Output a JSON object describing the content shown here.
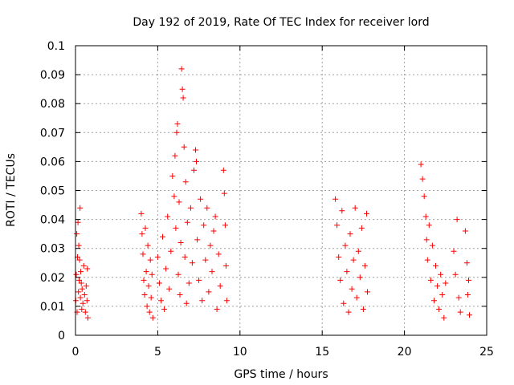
{
  "chart_data": {
    "type": "scatter",
    "title": "Day 192 of 2019, Rate Of TEC Index for receiver lord",
    "xlabel": "GPS time / hours",
    "ylabel": "ROTI / TECUs",
    "xlim": [
      0,
      25
    ],
    "ylim": [
      0,
      0.1
    ],
    "xticks": [
      0,
      5,
      10,
      15,
      20,
      25
    ],
    "xtick_labels": [
      "0",
      "5",
      "10",
      "15",
      "20",
      "25"
    ],
    "yticks": [
      0,
      0.01,
      0.02,
      0.03,
      0.04,
      0.05,
      0.06,
      0.07,
      0.08,
      0.09,
      0.1
    ],
    "ytick_labels": [
      "0",
      "0.01",
      "0.02",
      "0.03",
      "0.04",
      "0.05",
      "0.06",
      "0.07",
      "0.08",
      "0.09",
      "0.1"
    ],
    "grid": true,
    "marker": "+",
    "color": "#ff0000",
    "series": [
      {
        "points": [
          [
            0.02,
            0.012
          ],
          [
            0.05,
            0.021
          ],
          [
            0.08,
            0.035
          ],
          [
            0.1,
            0.008
          ],
          [
            0.12,
            0.027
          ],
          [
            0.15,
            0.039
          ],
          [
            0.18,
            0.015
          ],
          [
            0.2,
            0.031
          ],
          [
            0.22,
            0.019
          ],
          [
            0.25,
            0.026
          ],
          [
            0.28,
            0.044
          ],
          [
            0.3,
            0.013
          ],
          [
            0.32,
            0.022
          ],
          [
            0.35,
            0.018
          ],
          [
            0.38,
            0.009
          ],
          [
            0.4,
            0.016
          ],
          [
            0.45,
            0.011
          ],
          [
            0.5,
            0.024
          ],
          [
            0.55,
            0.014
          ],
          [
            0.6,
            0.008
          ],
          [
            0.65,
            0.017
          ],
          [
            0.7,
            0.012
          ],
          [
            0.72,
            0.023
          ],
          [
            0.75,
            0.006
          ],
          [
            4.0,
            0.042
          ],
          [
            4.05,
            0.035
          ],
          [
            4.1,
            0.028
          ],
          [
            4.15,
            0.019
          ],
          [
            4.2,
            0.014
          ],
          [
            4.25,
            0.037
          ],
          [
            4.3,
            0.022
          ],
          [
            4.35,
            0.01
          ],
          [
            4.4,
            0.031
          ],
          [
            4.45,
            0.017
          ],
          [
            4.5,
            0.008
          ],
          [
            4.55,
            0.026
          ],
          [
            4.6,
            0.013
          ],
          [
            4.65,
            0.021
          ],
          [
            4.7,
            0.006
          ],
          [
            5.0,
            0.027
          ],
          [
            5.1,
            0.018
          ],
          [
            5.2,
            0.012
          ],
          [
            5.3,
            0.034
          ],
          [
            5.4,
            0.009
          ],
          [
            5.5,
            0.023
          ],
          [
            5.6,
            0.041
          ],
          [
            5.7,
            0.016
          ],
          [
            5.8,
            0.029
          ],
          [
            5.9,
            0.055
          ],
          [
            6.0,
            0.048
          ],
          [
            6.05,
            0.062
          ],
          [
            6.1,
            0.037
          ],
          [
            6.15,
            0.07
          ],
          [
            6.2,
            0.073
          ],
          [
            6.25,
            0.021
          ],
          [
            6.3,
            0.046
          ],
          [
            6.35,
            0.014
          ],
          [
            6.4,
            0.032
          ],
          [
            6.45,
            0.092
          ],
          [
            6.5,
            0.085
          ],
          [
            6.55,
            0.082
          ],
          [
            6.6,
            0.065
          ],
          [
            6.65,
            0.027
          ],
          [
            6.7,
            0.053
          ],
          [
            6.75,
            0.011
          ],
          [
            6.8,
            0.039
          ],
          [
            6.9,
            0.018
          ],
          [
            7.0,
            0.044
          ],
          [
            7.1,
            0.025
          ],
          [
            7.2,
            0.057
          ],
          [
            7.3,
            0.064
          ],
          [
            7.35,
            0.06
          ],
          [
            7.4,
            0.033
          ],
          [
            7.5,
            0.019
          ],
          [
            7.6,
            0.047
          ],
          [
            7.7,
            0.012
          ],
          [
            7.8,
            0.038
          ],
          [
            7.9,
            0.026
          ],
          [
            8.0,
            0.044
          ],
          [
            8.1,
            0.015
          ],
          [
            8.2,
            0.031
          ],
          [
            8.3,
            0.022
          ],
          [
            8.4,
            0.036
          ],
          [
            8.5,
            0.041
          ],
          [
            8.6,
            0.009
          ],
          [
            8.7,
            0.028
          ],
          [
            8.8,
            0.017
          ],
          [
            9.0,
            0.057
          ],
          [
            9.05,
            0.049
          ],
          [
            9.1,
            0.038
          ],
          [
            9.15,
            0.024
          ],
          [
            9.2,
            0.012
          ],
          [
            15.8,
            0.047
          ],
          [
            15.9,
            0.038
          ],
          [
            16.0,
            0.027
          ],
          [
            16.1,
            0.019
          ],
          [
            16.2,
            0.043
          ],
          [
            16.3,
            0.011
          ],
          [
            16.4,
            0.031
          ],
          [
            16.5,
            0.022
          ],
          [
            16.6,
            0.008
          ],
          [
            16.7,
            0.035
          ],
          [
            16.8,
            0.016
          ],
          [
            16.9,
            0.026
          ],
          [
            17.0,
            0.044
          ],
          [
            17.1,
            0.013
          ],
          [
            17.2,
            0.029
          ],
          [
            17.3,
            0.02
          ],
          [
            17.4,
            0.037
          ],
          [
            17.5,
            0.009
          ],
          [
            17.6,
            0.024
          ],
          [
            17.7,
            0.042
          ],
          [
            17.75,
            0.015
          ],
          [
            21.0,
            0.059
          ],
          [
            21.1,
            0.054
          ],
          [
            21.2,
            0.048
          ],
          [
            21.3,
            0.041
          ],
          [
            21.35,
            0.033
          ],
          [
            21.4,
            0.026
          ],
          [
            21.5,
            0.038
          ],
          [
            21.6,
            0.019
          ],
          [
            21.7,
            0.031
          ],
          [
            21.8,
            0.012
          ],
          [
            21.9,
            0.024
          ],
          [
            22.0,
            0.017
          ],
          [
            22.1,
            0.009
          ],
          [
            22.2,
            0.021
          ],
          [
            22.3,
            0.014
          ],
          [
            22.4,
            0.006
          ],
          [
            22.5,
            0.018
          ],
          [
            23.0,
            0.029
          ],
          [
            23.1,
            0.021
          ],
          [
            23.2,
            0.04
          ],
          [
            23.3,
            0.013
          ],
          [
            23.4,
            0.008
          ],
          [
            23.7,
            0.036
          ],
          [
            23.8,
            0.025
          ],
          [
            23.85,
            0.014
          ],
          [
            23.9,
            0.019
          ],
          [
            23.95,
            0.007
          ]
        ]
      }
    ]
  }
}
